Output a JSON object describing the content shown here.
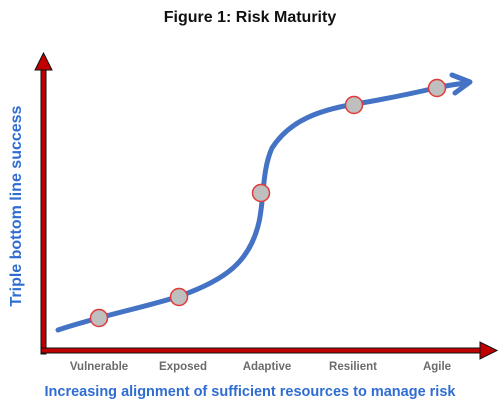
{
  "title": "Figure 1: Risk Maturity",
  "y_axis_label": "Triple bottom line success",
  "x_axis_label": "Increasing alignment of sufficient resources to manage risk",
  "stages": [
    {
      "label": "Vulnerable"
    },
    {
      "label": "Exposed"
    },
    {
      "label": "Adaptive"
    },
    {
      "label": "Resilient"
    },
    {
      "label": "Agile"
    }
  ],
  "colors": {
    "axis": "#c00000",
    "curve": "#4472c4",
    "marker_fill": "#bfbfbf",
    "marker_stroke": "#e03a3a",
    "axis_label": "#2f6dd1",
    "stage_label": "#6b6b6b"
  }
}
